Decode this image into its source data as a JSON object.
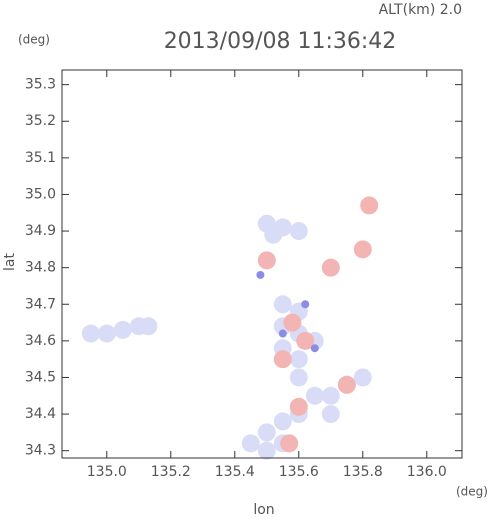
{
  "chart_data": {
    "type": "scatter",
    "title": "2013/09/08 11:36:42",
    "subtitle": "ALT(km)  2.0",
    "y_unit": "(deg)",
    "x_unit": "(deg)",
    "xlabel": "lon",
    "ylabel": "lat",
    "xlim": [
      134.86,
      136.11
    ],
    "ylim": [
      34.28,
      35.34
    ],
    "xticks": [
      {
        "value": 135,
        "label": "135.0"
      },
      135.2,
      135.4,
      135.6,
      135.8,
      {
        "value": 136,
        "label": "136.0"
      }
    ],
    "yticks": [
      34.3,
      34.4,
      34.5,
      34.6,
      34.7,
      34.8,
      34.9,
      {
        "value": 35,
        "label": "35.0"
      },
      35.1,
      35.2,
      35.3
    ],
    "series": [
      {
        "color": "#d9dcf6",
        "x": [
          134.95,
          135.0,
          135.05,
          135.1,
          135.13,
          135.5,
          135.55,
          135.6,
          135.52,
          135.55,
          135.6,
          135.55,
          135.6,
          135.65,
          135.55,
          135.6,
          135.6,
          135.65,
          135.6,
          135.55,
          135.5,
          135.55,
          135.5,
          135.45,
          135.7,
          135.75,
          135.8,
          135.7
        ],
        "y": [
          34.62,
          34.62,
          34.63,
          34.64,
          34.64,
          34.92,
          34.91,
          34.9,
          34.89,
          34.7,
          34.68,
          34.64,
          34.62,
          34.6,
          34.58,
          34.55,
          34.5,
          34.45,
          34.4,
          34.38,
          34.35,
          34.32,
          34.3,
          34.32,
          34.45,
          34.48,
          34.5,
          34.4
        ]
      },
      {
        "color": "#f3b4b4",
        "x": [
          135.82,
          135.8,
          135.7,
          135.5,
          135.58,
          135.62,
          135.55,
          135.75,
          135.6,
          135.57
        ],
        "y": [
          34.97,
          34.85,
          34.8,
          34.82,
          34.65,
          34.6,
          34.55,
          34.48,
          34.42,
          34.32
        ]
      },
      {
        "color": "#8c8ce6",
        "x": [
          135.55,
          135.48,
          135.62,
          135.65
        ],
        "y": [
          34.62,
          34.78,
          34.7,
          34.58
        ]
      }
    ]
  }
}
